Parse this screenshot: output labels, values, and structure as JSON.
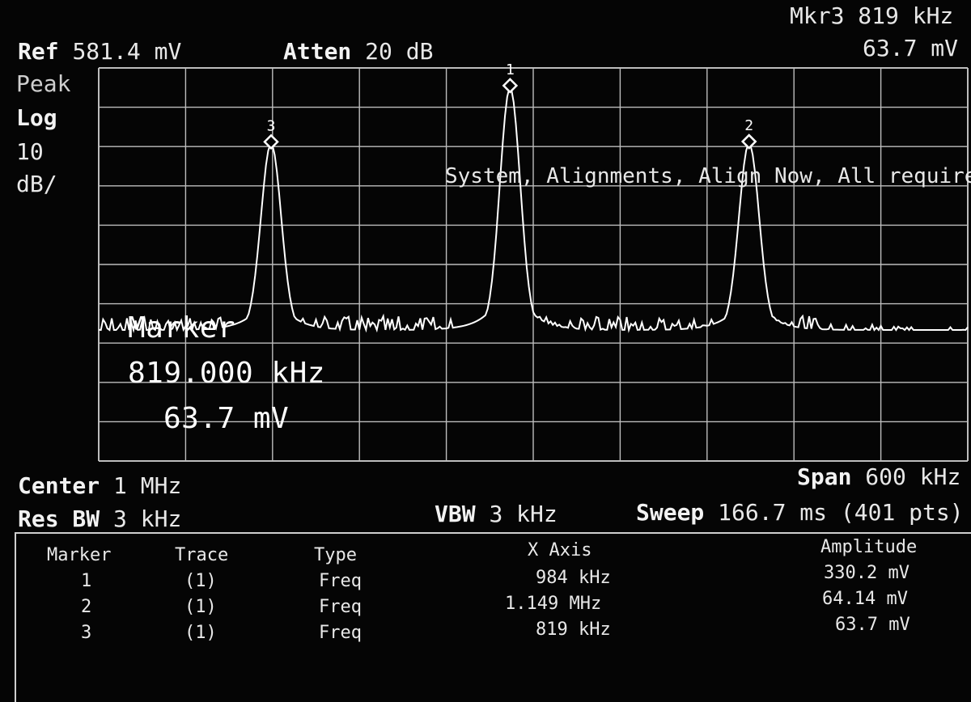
{
  "header": {
    "ref_label": "Ref",
    "ref_value": "581.4 mV",
    "atten_label": "Atten",
    "atten_value": "20 dB",
    "marker_readout_title": "Mkr3  819 kHz",
    "marker_readout_value": "63.7 mV"
  },
  "left_panel": {
    "detector": "Peak",
    "scale_type": "Log",
    "scale_value": "10",
    "scale_unit": "dB/"
  },
  "message": "System, Alignments, Align Now, All required",
  "active_marker": {
    "title": "Marker",
    "frequency": "819.000 kHz",
    "amplitude": "63.7 mV"
  },
  "chart_data": {
    "type": "line",
    "x_start_khz": 700,
    "x_stop_khz": 1300,
    "noise_floor_div": 5.2,
    "peaks": [
      {
        "marker": "3",
        "x_khz": 819,
        "amplitude_mv": 63.7
      },
      {
        "marker": "1",
        "x_khz": 984,
        "amplitude_mv": 330.2
      },
      {
        "marker": "2",
        "x_khz": 1149,
        "amplitude_mv": 64.14
      }
    ],
    "vertical_divisions": 10,
    "horizontal_divisions": 10,
    "grid": true,
    "trace_color": "#ffffff"
  },
  "footer": {
    "center_label": "Center",
    "center_value": "1 MHz",
    "span_label": "Span",
    "span_value": "600 kHz",
    "rbw_label": "Res BW",
    "rbw_value": "3 kHz",
    "vbw_label": "VBW",
    "vbw_value": "3 kHz",
    "sweep_label": "Sweep",
    "sweep_value": "166.7 ms (401 pts)"
  },
  "marker_table": {
    "headers": [
      "Marker",
      "Trace",
      "Type",
      "X Axis",
      "Amplitude"
    ],
    "rows": [
      [
        "1",
        "(1)",
        "Freq",
        "984 kHz",
        "330.2 mV"
      ],
      [
        "2",
        "(1)",
        "Freq",
        "1.149 MHz",
        "64.14 mV"
      ],
      [
        "3",
        "(1)",
        "Freq",
        "819 kHz",
        "63.7 mV"
      ]
    ]
  },
  "colors": {
    "background": "#050505",
    "text": "#e8e8e8",
    "grid": "#bdbdbd"
  }
}
